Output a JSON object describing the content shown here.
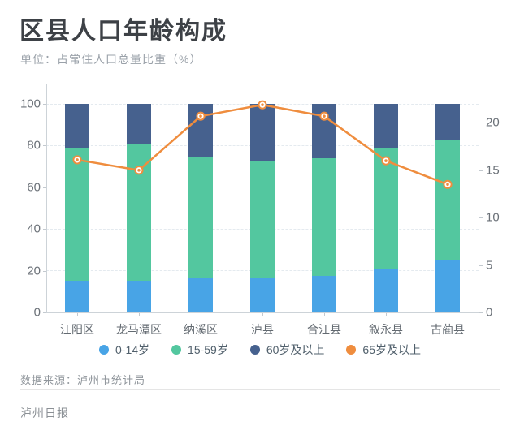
{
  "header": {
    "title": "区县人口年龄构成",
    "subtitle": "单位：占常住人口总量比重（%）"
  },
  "chart_data": {
    "type": "bar",
    "subtype": "stacked-bar-with-line-overlay",
    "categories": [
      "江阳区",
      "龙马潭区",
      "纳溪区",
      "泸县",
      "合江县",
      "叙永县",
      "古蔺县"
    ],
    "series": [
      {
        "name": "0-14岁",
        "type": "bar",
        "stack": true,
        "color": "#48a4e6",
        "axis": "left",
        "values": [
          15.0,
          15.2,
          16.5,
          16.3,
          17.6,
          21.0,
          25.3
        ]
      },
      {
        "name": "15-59岁",
        "type": "bar",
        "stack": true,
        "color": "#53c79f",
        "axis": "left",
        "values": [
          64.0,
          65.3,
          57.8,
          56.1,
          56.3,
          58.0,
          57.0
        ]
      },
      {
        "name": "60岁及以上",
        "type": "bar",
        "stack": true,
        "color": "#46618e",
        "axis": "left",
        "values": [
          21.0,
          19.5,
          25.7,
          27.6,
          26.1,
          21.0,
          17.7
        ]
      },
      {
        "name": "65岁及以上",
        "type": "line",
        "stack": false,
        "color": "#ef8d3e",
        "axis": "right",
        "values": [
          16.1,
          15.0,
          20.7,
          21.9,
          20.7,
          16.0,
          13.5
        ]
      }
    ],
    "left_axis": {
      "ticks": [
        0,
        20,
        40,
        60,
        80,
        100
      ],
      "min": 0,
      "max": 100
    },
    "right_axis": {
      "ticks": [
        0,
        5,
        10,
        15,
        20
      ],
      "min": 0,
      "max": 22
    },
    "grid": "horizontal dashed",
    "legend_position": "bottom",
    "title": "区县人口年龄构成",
    "xlabel": "",
    "ylabel": "占常住人口总量比重（%）"
  },
  "footer": {
    "source": "数据来源：泸州市统计局",
    "publisher": "泸州日报"
  }
}
